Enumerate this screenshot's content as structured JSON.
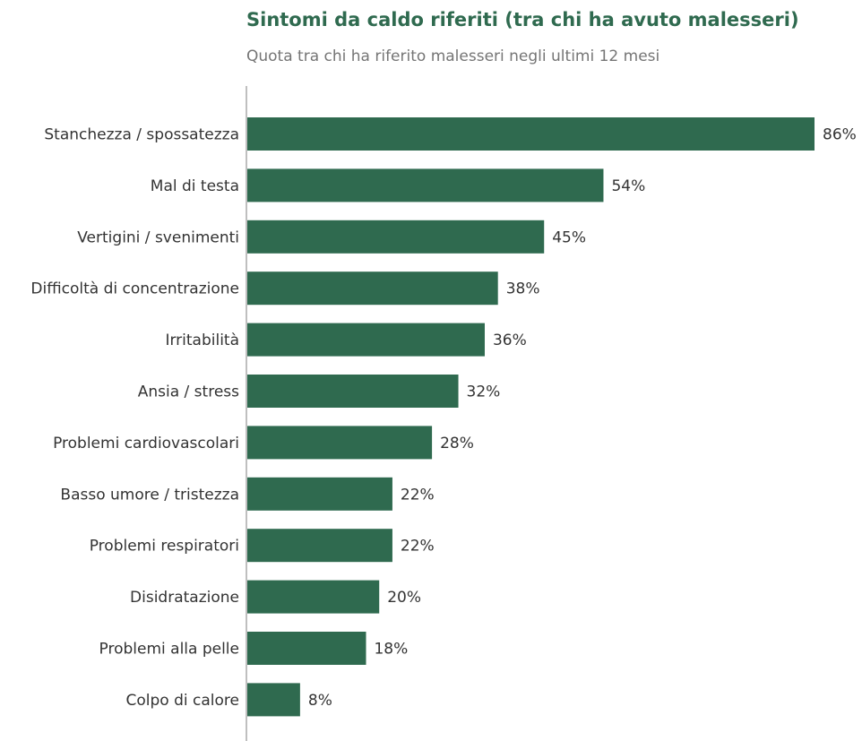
{
  "chart_data": {
    "type": "bar",
    "orientation": "horizontal",
    "title": "Sintomi da caldo riferiti (tra chi ha avuto malesseri)",
    "subtitle": "Quota tra chi ha riferito malesseri negli ultimi 12 mesi",
    "xlabel": "",
    "ylabel": "",
    "xlim": [
      0,
      86
    ],
    "grid": false,
    "value_suffix": "%",
    "bar_color": "#2f6a4f",
    "categories": [
      "Stanchezza / spossatezza",
      "Mal di testa",
      "Vertigini / svenimenti",
      "Difficoltà di concentrazione",
      "Irritabilità",
      "Ansia / stress",
      "Problemi cardiovascolari",
      "Basso umore / tristezza",
      "Problemi respiratori",
      "Disidratazione",
      "Problemi alla pelle",
      "Colpo di calore"
    ],
    "values": [
      86,
      54,
      45,
      38,
      36,
      32,
      28,
      22,
      22,
      20,
      18,
      8
    ],
    "value_labels": [
      "86%",
      "54%",
      "45%",
      "38%",
      "36%",
      "32%",
      "28%",
      "22%",
      "22%",
      "20%",
      "18%",
      "8%"
    ]
  }
}
